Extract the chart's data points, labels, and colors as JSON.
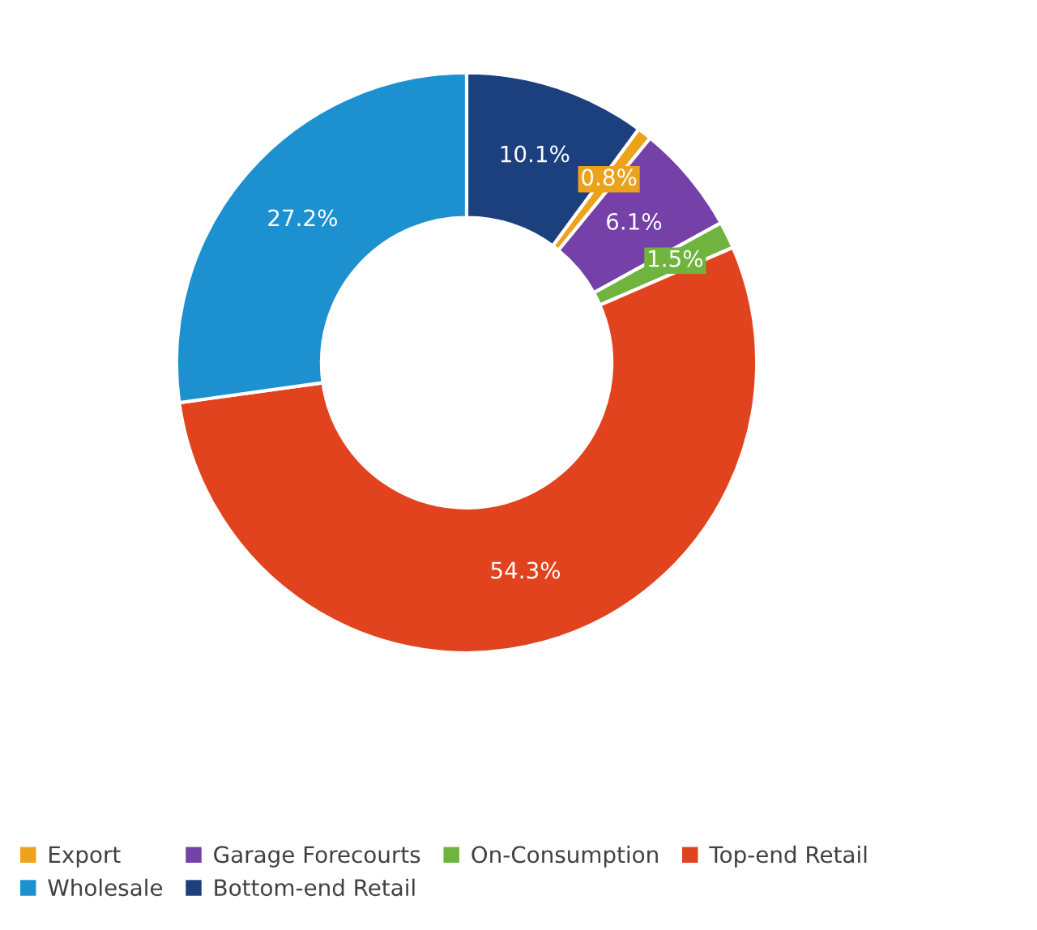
{
  "chart_data": {
    "type": "donut",
    "categories": [
      "Export",
      "Garage Forecourts",
      "On-Consumption",
      "Top-end Retail",
      "Wholesale",
      "Bottom-end Retail"
    ],
    "values": [
      0.8,
      6.1,
      1.5,
      54.3,
      27.2,
      10.1
    ],
    "colors": [
      "#eda21c",
      "#7540a8",
      "#6fb43f",
      "#e2431f",
      "#1d90d0",
      "#1c3f7e"
    ],
    "value_labels": [
      "0.8%",
      "6.1%",
      "1.5%",
      "54.3%",
      "27.2%",
      "10.1%"
    ],
    "legend": "bottom"
  }
}
